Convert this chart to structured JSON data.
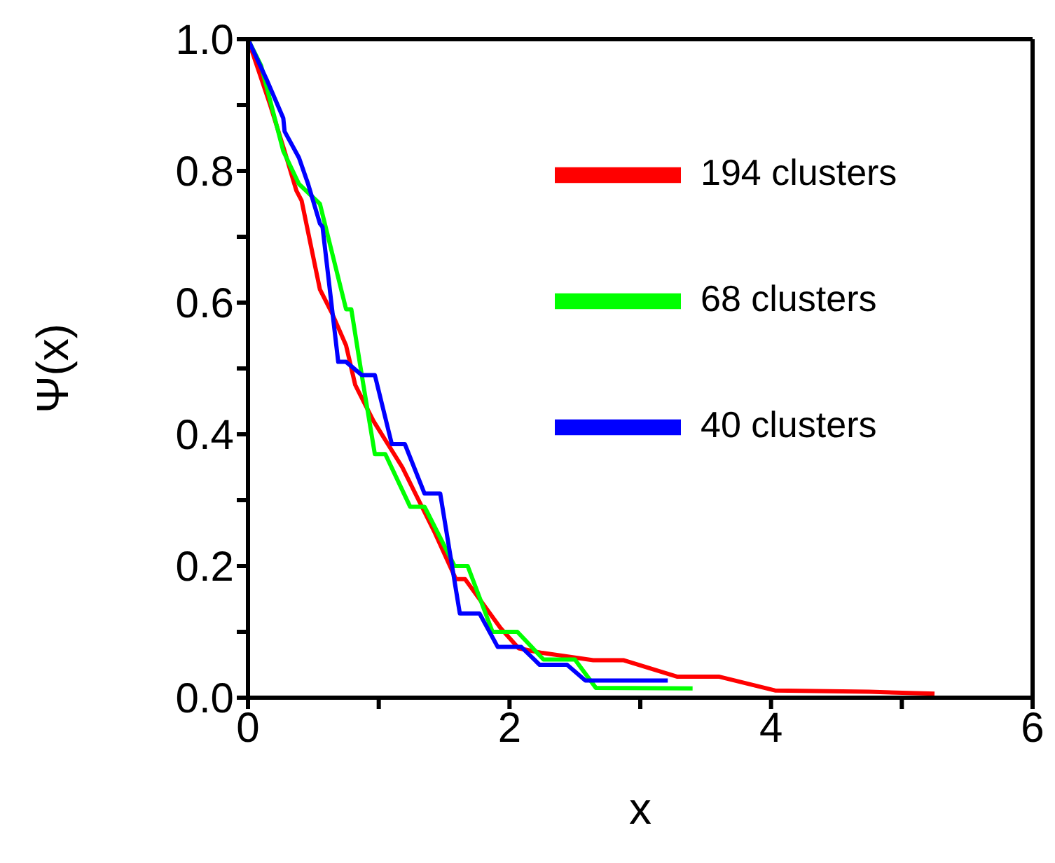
{
  "chart_data": {
    "type": "line",
    "xlabel": "x",
    "ylabel": "Ψ(x)",
    "xlim": [
      0,
      6
    ],
    "xticks": [
      0,
      {
        "value": 1,
        "label": null
      },
      2,
      {
        "value": 3,
        "label": null
      },
      4,
      {
        "value": 5,
        "label": null
      },
      6
    ],
    "ylim": [
      0,
      1
    ],
    "yticks": [
      {
        "value": 0,
        "label": "0.0"
      },
      {
        "value": 0.1,
        "label": null
      },
      {
        "value": 0.2,
        "label": "0.2"
      },
      {
        "value": 0.3,
        "label": null
      },
      {
        "value": 0.4,
        "label": "0.4"
      },
      {
        "value": 0.5,
        "label": null
      },
      {
        "value": 0.6,
        "label": "0.6"
      },
      {
        "value": 0.7,
        "label": null
      },
      {
        "value": 0.8,
        "label": "0.8"
      },
      {
        "value": 0.9,
        "label": null
      },
      {
        "value": 1.0,
        "label": "1.0"
      }
    ],
    "legend": "top right",
    "grid": false,
    "marker": "none",
    "line_style": "solid",
    "series": [
      {
        "name": "194 clusters",
        "color": "#ff0000",
        "x": [
          0,
          0.17,
          0.28,
          0.37,
          0.41,
          0.55,
          0.64,
          0.75,
          0.82,
          0.96,
          1.18,
          1.43,
          1.59,
          1.66,
          1.93,
          2.07,
          2.25,
          2.64,
          2.87,
          3.28,
          3.6,
          4.03,
          4.75,
          5.25
        ],
        "values": [
          1.0,
          0.9,
          0.83,
          0.77,
          0.755,
          0.62,
          0.585,
          0.535,
          0.475,
          0.42,
          0.35,
          0.25,
          0.18,
          0.18,
          0.106,
          0.075,
          0.068,
          0.057,
          0.057,
          0.032,
          0.032,
          0.011,
          0.009,
          0.006
        ]
      },
      {
        "name": "68 clusters",
        "color": "#00ff00",
        "x": [
          0,
          0.1,
          0.27,
          0.39,
          0.55,
          0.75,
          0.79,
          0.87,
          0.97,
          1.05,
          1.24,
          1.35,
          1.58,
          1.68,
          1.87,
          2.06,
          2.26,
          2.5,
          2.66,
          3.4
        ],
        "values": [
          1.0,
          0.96,
          0.83,
          0.78,
          0.75,
          0.59,
          0.59,
          0.49,
          0.37,
          0.37,
          0.29,
          0.29,
          0.2,
          0.2,
          0.1,
          0.1,
          0.058,
          0.058,
          0.015,
          0.014
        ]
      },
      {
        "name": "40 clusters",
        "color": "#0000ff",
        "x": [
          0,
          0.14,
          0.27,
          0.28,
          0.39,
          0.46,
          0.55,
          0.57,
          0.69,
          0.75,
          0.87,
          0.97,
          1.1,
          1.2,
          1.35,
          1.47,
          1.62,
          1.77,
          1.91,
          2.09,
          2.23,
          2.44,
          2.58,
          3.21
        ],
        "values": [
          1.0,
          0.94,
          0.88,
          0.86,
          0.82,
          0.78,
          0.72,
          0.715,
          0.51,
          0.51,
          0.49,
          0.49,
          0.385,
          0.385,
          0.31,
          0.31,
          0.128,
          0.128,
          0.077,
          0.077,
          0.05,
          0.05,
          0.026,
          0.026
        ]
      }
    ]
  }
}
